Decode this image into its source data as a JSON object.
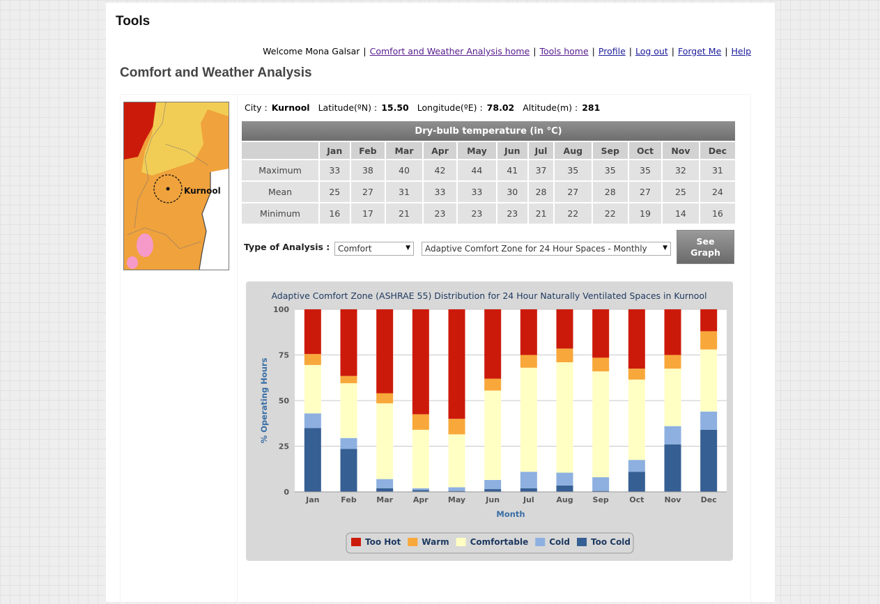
{
  "header": {
    "site_title": "Tools"
  },
  "nav": {
    "welcome": "Welcome Mona Galsar",
    "links": [
      "Comfort and Weather Analysis home",
      "Tools home",
      "Profile",
      "Log out",
      "Forget Me",
      "Help"
    ]
  },
  "page_title": "Comfort and Weather Analysis",
  "map": {
    "label": "Kurnool"
  },
  "city_info": {
    "city_label": "City :",
    "city": "Kurnool",
    "lat_label": "Latitude(ºN) :",
    "lat": "15.50",
    "lon_label": "Longitude(ºE) :",
    "lon": "78.02",
    "alt_label": "Altitude(m) :",
    "alt": "281"
  },
  "temp_table": {
    "caption": "Dry-bulb temperature (in °C)",
    "months": [
      "Jan",
      "Feb",
      "Mar",
      "Apr",
      "May",
      "Jun",
      "Jul",
      "Aug",
      "Sep",
      "Oct",
      "Nov",
      "Dec"
    ],
    "rows": [
      {
        "label": "Maximum",
        "values": [
          "33",
          "38",
          "40",
          "42",
          "44",
          "41",
          "37",
          "35",
          "35",
          "35",
          "32",
          "31"
        ]
      },
      {
        "label": "Mean",
        "values": [
          "25",
          "27",
          "31",
          "33",
          "33",
          "30",
          "28",
          "27",
          "28",
          "27",
          "25",
          "24"
        ]
      },
      {
        "label": "Minimum",
        "values": [
          "16",
          "17",
          "21",
          "23",
          "23",
          "23",
          "21",
          "22",
          "22",
          "19",
          "14",
          "16"
        ]
      }
    ]
  },
  "controls": {
    "analysis_label": "Type of Analysis :",
    "type_value": "Comfort",
    "mode_value": "Adaptive Comfort Zone for 24 Hour Spaces - Monthly",
    "see_graph": "See Graph"
  },
  "colors": {
    "too_hot": "#cc1a0a",
    "warm": "#f8a83a",
    "comfortable": "#ffffc4",
    "cold": "#8db0e0",
    "too_cold": "#365f93",
    "title_text": "#1f3a60",
    "axis_label": "#3a6ea5"
  },
  "chart_data": {
    "type": "bar",
    "stacked": true,
    "title": "Adaptive Comfort Zone (ASHRAE 55) Distribution for 24 Hour Naturally Ventilated Spaces in Kurnool",
    "xlabel": "Month",
    "ylabel": "% Operating Hours",
    "ylim": [
      0,
      100
    ],
    "yticks": [
      "0",
      "25",
      "50",
      "75",
      "100"
    ],
    "grid": true,
    "legend_position": "bottom",
    "categories": [
      "Jan",
      "Feb",
      "Mar",
      "Apr",
      "May",
      "Jun",
      "Jul",
      "Aug",
      "Sep",
      "Oct",
      "Nov",
      "Dec"
    ],
    "series": [
      {
        "name": "Too Cold",
        "values": [
          35,
          23.5,
          2,
          1,
          0.5,
          1.5,
          2,
          3.5,
          0.5,
          11,
          26,
          34
        ]
      },
      {
        "name": "Cold",
        "values": [
          8,
          6,
          5,
          1,
          2,
          5,
          9,
          7,
          7.5,
          6.5,
          10,
          10
        ]
      },
      {
        "name": "Comfortable",
        "values": [
          26.5,
          30,
          41.5,
          32,
          29,
          49,
          57,
          60.5,
          58,
          44,
          31.5,
          34
        ]
      },
      {
        "name": "Warm",
        "values": [
          6,
          4,
          5.5,
          8.5,
          8.5,
          6.5,
          7,
          7.5,
          7.5,
          6,
          7.5,
          10
        ]
      },
      {
        "name": "Too Hot",
        "values": [
          24.5,
          36.5,
          46,
          57.5,
          60,
          38,
          25,
          21.5,
          26.5,
          32.5,
          25,
          12
        ]
      }
    ]
  }
}
